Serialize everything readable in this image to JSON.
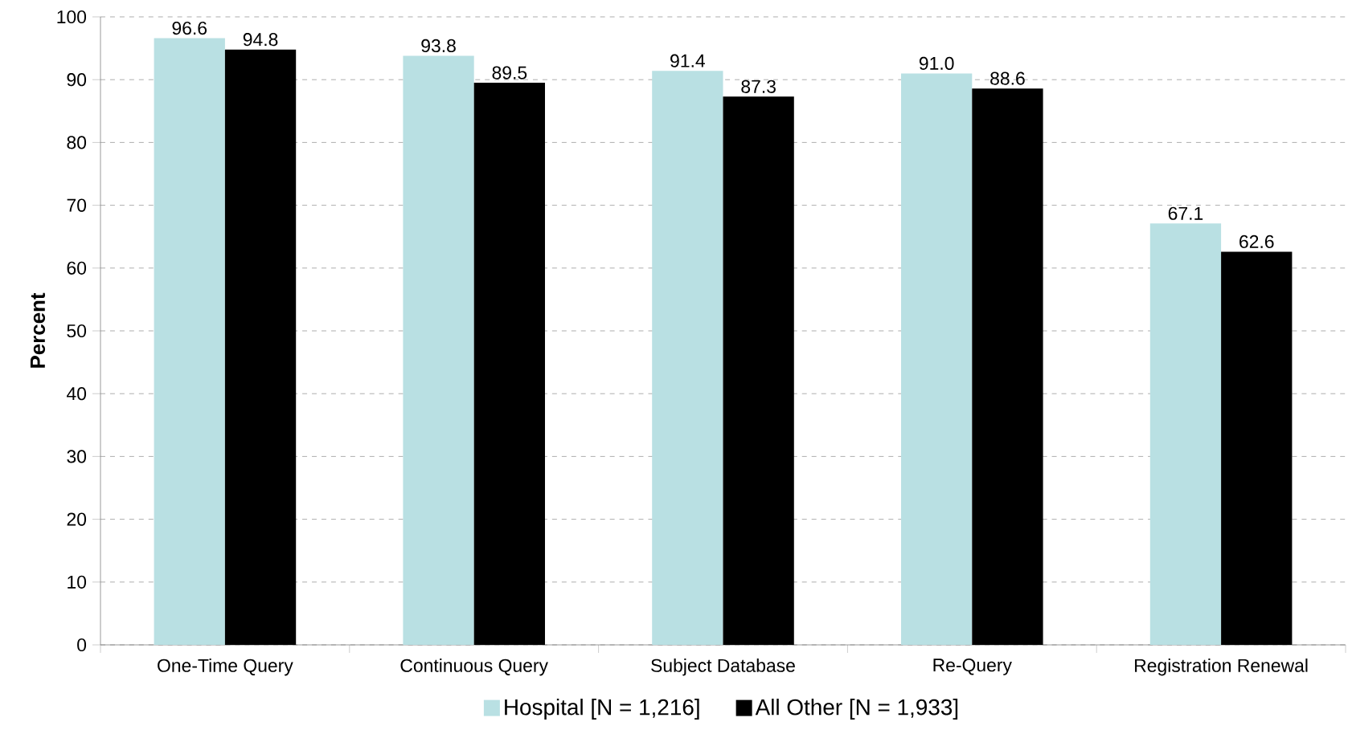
{
  "chart_data": {
    "type": "bar",
    "ylabel": "Percent",
    "categories": [
      "One-Time Query",
      "Continuous Query",
      "Subject Database",
      "Re-Query",
      "Registration Renewal"
    ],
    "series": [
      {
        "name": "Hospital [N = 1,216]",
        "color": "#b9e0e3",
        "values": [
          96.6,
          93.8,
          91.4,
          91.0,
          67.1
        ],
        "value_labels": [
          "96.6",
          "93.8",
          "91.4",
          "91.0",
          "67.1"
        ]
      },
      {
        "name": "All Other [N = 1,933]",
        "color": "#000000",
        "values": [
          94.8,
          89.5,
          87.3,
          88.6,
          62.6
        ],
        "value_labels": [
          "94.8",
          "89.5",
          "87.3",
          "88.6",
          "62.6"
        ]
      }
    ],
    "ylim": [
      0,
      100
    ],
    "yticks": [
      0,
      10,
      20,
      30,
      40,
      50,
      60,
      70,
      80,
      90,
      100
    ],
    "grid": "y",
    "legend": "bottom"
  }
}
